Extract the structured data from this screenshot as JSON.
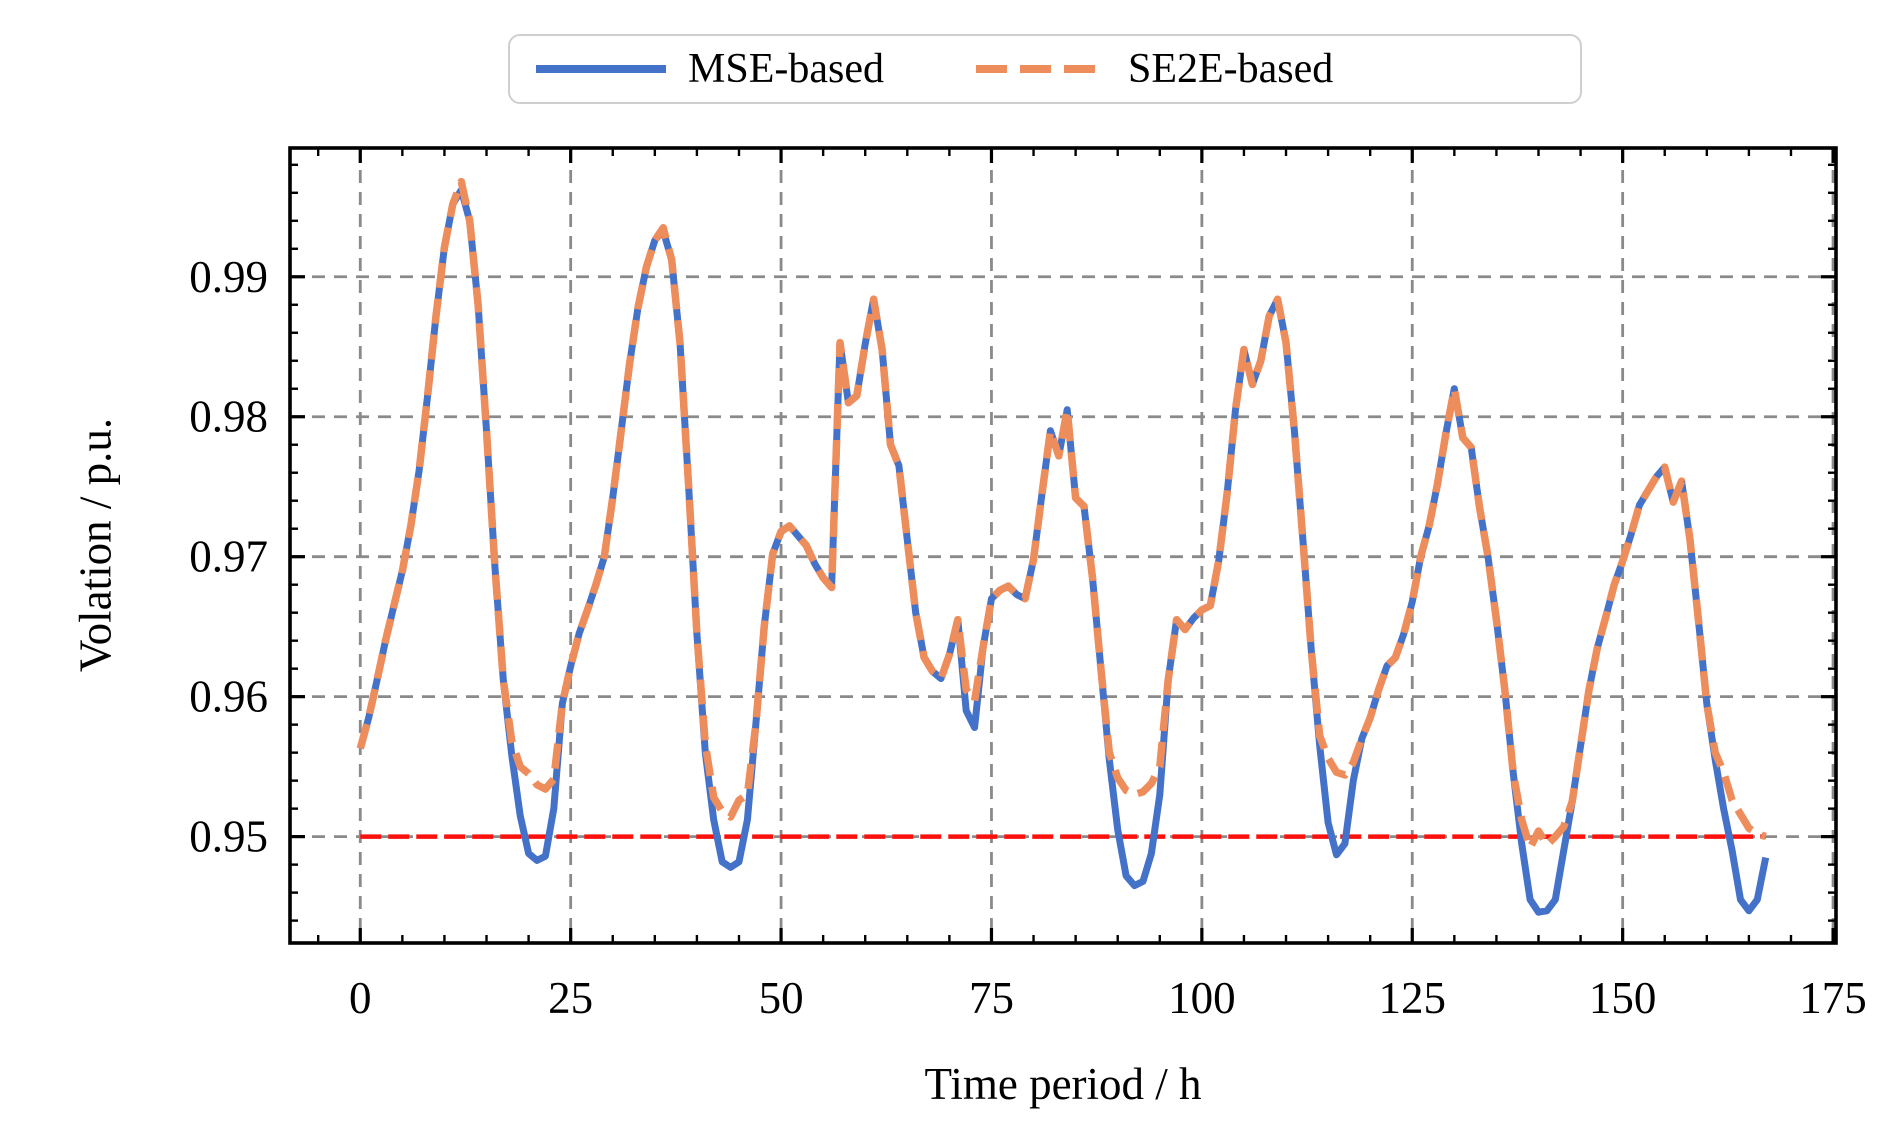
{
  "legend": {
    "items": [
      {
        "label": "MSE-based",
        "color": "#4472c8",
        "style": "solid"
      },
      {
        "label": "SE2E-based",
        "color": "#ee8d5c",
        "style": "dashed"
      }
    ]
  },
  "axes": {
    "xlabel": "Time period / h",
    "ylabel": "Volation / p.u."
  },
  "chart_data": {
    "type": "line",
    "title": "",
    "xlabel": "Time period / h",
    "ylabel": "Volation / p.u.",
    "x_start": 0,
    "x_step": 1,
    "n_points": 168,
    "xlim": [
      -8.35,
      175.35
    ],
    "ylim": [
      0.9424,
      0.9992
    ],
    "x_ticks": [
      0,
      25,
      50,
      75,
      100,
      125,
      150,
      175
    ],
    "x_minor_step": 5,
    "y_ticks": [
      "0.95",
      "0.96",
      "0.97",
      "0.98",
      "0.99"
    ],
    "y_tick_values": [
      0.95,
      0.96,
      0.97,
      0.98,
      0.99
    ],
    "y_minor_step": 0.002,
    "grid": true,
    "grid_color": "#8a8a8a",
    "legend_position": "upper center",
    "reference_line": {
      "y": 0.95,
      "color": "#fb100c",
      "style": "dashed",
      "x_start": 0,
      "x_end": 167
    },
    "series": [
      {
        "name": "MSE-based",
        "color": "#4472c8",
        "style": "solid",
        "values": [
          0.9563,
          0.9585,
          0.9612,
          0.964,
          0.9665,
          0.969,
          0.9722,
          0.9762,
          0.9815,
          0.9872,
          0.9921,
          0.9952,
          0.9962,
          0.994,
          0.988,
          0.979,
          0.9693,
          0.9612,
          0.9558,
          0.9515,
          0.9488,
          0.9483,
          0.9486,
          0.952,
          0.9595,
          0.9622,
          0.9645,
          0.9662,
          0.968,
          0.97,
          0.9742,
          0.979,
          0.9838,
          0.9878,
          0.9907,
          0.9926,
          0.9933,
          0.9912,
          0.9852,
          0.9752,
          0.9645,
          0.956,
          0.9512,
          0.9482,
          0.9478,
          0.9482,
          0.9512,
          0.958,
          0.965,
          0.9702,
          0.9718,
          0.9722,
          0.9715,
          0.9708,
          0.9695,
          0.9685,
          0.9678,
          0.9853,
          0.981,
          0.9815,
          0.9852,
          0.9884,
          0.9848,
          0.978,
          0.9765,
          0.9712,
          0.966,
          0.9628,
          0.9618,
          0.9613,
          0.963,
          0.9655,
          0.959,
          0.9578,
          0.9635,
          0.967,
          0.9676,
          0.9679,
          0.9673,
          0.967,
          0.9698,
          0.9745,
          0.979,
          0.9772,
          0.9805,
          0.9742,
          0.9736,
          0.9685,
          0.962,
          0.9555,
          0.9505,
          0.9472,
          0.9465,
          0.9468,
          0.9488,
          0.953,
          0.9612,
          0.9655,
          0.9648,
          0.9656,
          0.9662,
          0.9665,
          0.9697,
          0.9745,
          0.9805,
          0.9848,
          0.9823,
          0.984,
          0.9872,
          0.9884,
          0.9853,
          0.979,
          0.9712,
          0.9633,
          0.9565,
          0.951,
          0.9487,
          0.9495,
          0.954,
          0.957,
          0.9585,
          0.9605,
          0.9622,
          0.9628,
          0.9645,
          0.9668,
          0.97,
          0.9722,
          0.9752,
          0.9788,
          0.982,
          0.9785,
          0.9778,
          0.9735,
          0.97,
          0.9655,
          0.9605,
          0.9545,
          0.9495,
          0.9455,
          0.9446,
          0.9447,
          0.9455,
          0.949,
          0.9525,
          0.9565,
          0.9605,
          0.9635,
          0.9657,
          0.968,
          0.9697,
          0.9716,
          0.9737,
          0.9747,
          0.9757,
          0.9764,
          0.9739,
          0.9754,
          0.9712,
          0.9655,
          0.9595,
          0.9555,
          0.952,
          0.949,
          0.9455,
          0.9447,
          0.9455,
          0.9485
        ]
      },
      {
        "name": "SE2E-based",
        "color": "#ee8d5c",
        "style": "dashed",
        "values": [
          0.9563,
          0.9585,
          0.9612,
          0.964,
          0.9665,
          0.969,
          0.9722,
          0.9762,
          0.9815,
          0.9872,
          0.9921,
          0.9952,
          0.9968,
          0.994,
          0.988,
          0.979,
          0.9693,
          0.9612,
          0.9568,
          0.955,
          0.9545,
          0.9537,
          0.9534,
          0.9541,
          0.9595,
          0.9622,
          0.9645,
          0.9662,
          0.968,
          0.97,
          0.9742,
          0.979,
          0.9838,
          0.9878,
          0.9907,
          0.9926,
          0.9935,
          0.9912,
          0.9852,
          0.9752,
          0.9645,
          0.9566,
          0.9528,
          0.9518,
          0.9514,
          0.9526,
          0.953,
          0.958,
          0.965,
          0.9702,
          0.9718,
          0.9722,
          0.9715,
          0.9708,
          0.9695,
          0.9685,
          0.9678,
          0.9853,
          0.981,
          0.9815,
          0.9852,
          0.9884,
          0.9848,
          0.978,
          0.9765,
          0.9712,
          0.966,
          0.9628,
          0.9618,
          0.9613,
          0.963,
          0.9655,
          0.9605,
          0.9597,
          0.9635,
          0.967,
          0.9676,
          0.9679,
          0.9673,
          0.967,
          0.9698,
          0.9745,
          0.979,
          0.9772,
          0.9805,
          0.9742,
          0.9736,
          0.9685,
          0.962,
          0.956,
          0.9542,
          0.9533,
          0.953,
          0.9532,
          0.9538,
          0.955,
          0.9612,
          0.9655,
          0.9648,
          0.9656,
          0.9662,
          0.9665,
          0.9697,
          0.9745,
          0.9805,
          0.9848,
          0.9823,
          0.984,
          0.9872,
          0.9884,
          0.9853,
          0.979,
          0.9712,
          0.9633,
          0.9572,
          0.9556,
          0.9546,
          0.9544,
          0.9553,
          0.957,
          0.9585,
          0.9605,
          0.9622,
          0.9628,
          0.9645,
          0.9668,
          0.97,
          0.9722,
          0.9752,
          0.9788,
          0.982,
          0.9785,
          0.9778,
          0.9735,
          0.97,
          0.9655,
          0.9605,
          0.9545,
          0.9512,
          0.9492,
          0.9504,
          0.9494,
          0.95,
          0.9507,
          0.9525,
          0.9565,
          0.9605,
          0.9635,
          0.9657,
          0.968,
          0.9697,
          0.9716,
          0.9737,
          0.9747,
          0.9757,
          0.9764,
          0.9739,
          0.9754,
          0.9712,
          0.9655,
          0.9595,
          0.956,
          0.9546,
          0.9526,
          0.9516,
          0.9506,
          0.9502,
          0.95
        ]
      }
    ]
  }
}
